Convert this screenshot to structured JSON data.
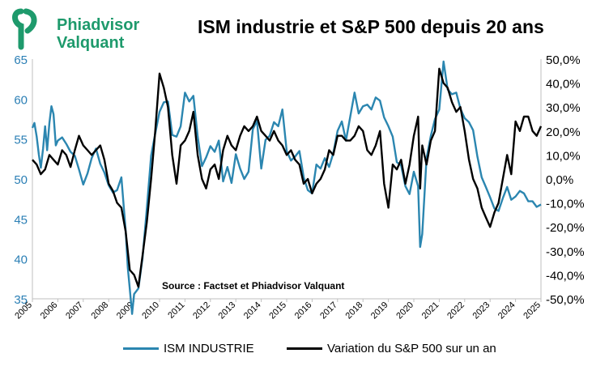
{
  "header": {
    "brand_line1": "Phiadvisor",
    "brand_line2": "Valquant",
    "title": "ISM industrie et S&P 500 depuis 20 ans"
  },
  "colors": {
    "ism": "#2b86b0",
    "sp": "#000000",
    "brand": "#1e9a6c",
    "left_axis_text": "#2b7fb5"
  },
  "chart_data": {
    "type": "line",
    "title": "ISM industrie et S&P 500 depuis 20 ans",
    "annotation": "Source : Factset et Phiadvisor Valquant",
    "x_ticks": [
      "2005",
      "2006",
      "2007",
      "2008",
      "2009",
      "2010",
      "2011",
      "2012",
      "2013",
      "2014",
      "2015",
      "2016",
      "2017",
      "2018",
      "2019",
      "2020",
      "2021",
      "2022",
      "2023",
      "2024",
      "2025"
    ],
    "xlim": [
      2005,
      2025
    ],
    "y_left": {
      "ylim": [
        35,
        65
      ],
      "ticks": [
        "35",
        "40",
        "45",
        "50",
        "55",
        "60",
        "65"
      ]
    },
    "y_right": {
      "ylim": [
        -50,
        50
      ],
      "ticks": [
        "-50,0%",
        "-40,0%",
        "-30,0%",
        "-20,0%",
        "-10,0%",
        "0,0%",
        "10,0%",
        "20,0%",
        "30,0%",
        "40,0%",
        "50,0%"
      ]
    },
    "grid": false,
    "legend_position": "bottom",
    "series": [
      {
        "name": "ISM INDUSTRIE",
        "axis": "left",
        "x": [
          2005.0,
          2005.08,
          2005.17,
          2005.25,
          2005.33,
          2005.42,
          2005.5,
          2005.58,
          2005.67,
          2005.75,
          2005.83,
          2005.92,
          2006.0,
          2006.17,
          2006.33,
          2006.5,
          2006.67,
          2006.83,
          2007.0,
          2007.17,
          2007.33,
          2007.5,
          2007.67,
          2007.83,
          2008.0,
          2008.17,
          2008.33,
          2008.5,
          2008.67,
          2008.75,
          2008.83,
          2008.92,
          2009.0,
          2009.17,
          2009.33,
          2009.5,
          2009.67,
          2009.83,
          2010.0,
          2010.17,
          2010.33,
          2010.5,
          2010.67,
          2010.83,
          2011.0,
          2011.17,
          2011.33,
          2011.5,
          2011.67,
          2011.83,
          2012.0,
          2012.17,
          2012.33,
          2012.5,
          2012.67,
          2012.83,
          2013.0,
          2013.17,
          2013.33,
          2013.5,
          2013.67,
          2013.83,
          2014.0,
          2014.17,
          2014.33,
          2014.5,
          2014.67,
          2014.83,
          2015.0,
          2015.17,
          2015.33,
          2015.5,
          2015.67,
          2015.83,
          2016.0,
          2016.17,
          2016.33,
          2016.5,
          2016.67,
          2016.83,
          2017.0,
          2017.17,
          2017.33,
          2017.5,
          2017.67,
          2017.83,
          2018.0,
          2018.17,
          2018.33,
          2018.5,
          2018.67,
          2018.83,
          2019.0,
          2019.17,
          2019.33,
          2019.5,
          2019.67,
          2019.83,
          2020.0,
          2020.17,
          2020.25,
          2020.33,
          2020.5,
          2020.67,
          2020.83,
          2021.0,
          2021.17,
          2021.33,
          2021.5,
          2021.67,
          2021.83,
          2022.0,
          2022.17,
          2022.33,
          2022.5,
          2022.67,
          2022.83,
          2023.0,
          2023.17,
          2023.33,
          2023.5,
          2023.67,
          2023.83,
          2024.0,
          2024.17,
          2024.33,
          2024.5,
          2024.67,
          2024.83,
          2025.0
        ],
        "values": [
          56.4,
          57.0,
          55.3,
          53.1,
          51.4,
          53.8,
          56.6,
          53.6,
          57.0,
          59.1,
          58.1,
          54.2,
          54.8,
          55.2,
          54.4,
          53.4,
          52.9,
          51.2,
          49.3,
          50.7,
          52.6,
          53.8,
          51.9,
          50.8,
          49.2,
          48.3,
          48.6,
          50.2,
          43.5,
          38.9,
          36.2,
          33.1,
          35.6,
          36.3,
          40.1,
          46.3,
          52.9,
          55.7,
          58.4,
          59.6,
          59.7,
          55.5,
          55.3,
          56.6,
          60.8,
          59.7,
          60.4,
          55.3,
          51.6,
          52.7,
          54.1,
          53.4,
          54.8,
          49.7,
          51.5,
          49.5,
          53.1,
          51.3,
          50.0,
          50.9,
          56.2,
          57.3,
          51.3,
          54.9,
          55.4,
          57.1,
          56.6,
          58.7,
          53.5,
          52.3,
          52.8,
          53.5,
          50.2,
          48.6,
          48.2,
          51.8,
          51.3,
          52.6,
          51.5,
          53.2,
          56.0,
          57.2,
          54.8,
          57.8,
          60.8,
          58.2,
          59.1,
          59.3,
          58.7,
          60.2,
          59.8,
          57.7,
          56.6,
          55.3,
          52.1,
          51.7,
          49.1,
          48.1,
          50.9,
          49.1,
          41.5,
          43.1,
          52.6,
          55.4,
          57.5,
          58.7,
          64.7,
          61.2,
          60.6,
          60.8,
          58.8,
          57.6,
          57.1,
          56.1,
          52.8,
          50.2,
          49.0,
          47.7,
          46.3,
          46.0,
          47.6,
          49.0,
          47.4,
          47.8,
          48.5,
          48.2,
          47.2,
          47.2,
          46.5,
          46.8
        ]
      },
      {
        "name": "Variation du S&P 500 sur un an",
        "axis": "right",
        "x": [
          2005.0,
          2005.17,
          2005.33,
          2005.5,
          2005.67,
          2005.83,
          2006.0,
          2006.17,
          2006.33,
          2006.5,
          2006.67,
          2006.83,
          2007.0,
          2007.17,
          2007.33,
          2007.5,
          2007.67,
          2007.83,
          2008.0,
          2008.17,
          2008.33,
          2008.5,
          2008.67,
          2008.83,
          2009.0,
          2009.17,
          2009.33,
          2009.5,
          2009.67,
          2009.83,
          2010.0,
          2010.17,
          2010.33,
          2010.5,
          2010.67,
          2010.83,
          2011.0,
          2011.17,
          2011.33,
          2011.5,
          2011.67,
          2011.83,
          2012.0,
          2012.17,
          2012.33,
          2012.5,
          2012.67,
          2012.83,
          2013.0,
          2013.17,
          2013.33,
          2013.5,
          2013.67,
          2013.83,
          2014.0,
          2014.17,
          2014.33,
          2014.5,
          2014.67,
          2014.83,
          2015.0,
          2015.17,
          2015.33,
          2015.5,
          2015.67,
          2015.83,
          2016.0,
          2016.17,
          2016.33,
          2016.5,
          2016.67,
          2016.83,
          2017.0,
          2017.17,
          2017.33,
          2017.5,
          2017.67,
          2017.83,
          2018.0,
          2018.17,
          2018.33,
          2018.5,
          2018.67,
          2018.83,
          2019.0,
          2019.17,
          2019.33,
          2019.5,
          2019.67,
          2019.83,
          2020.0,
          2020.17,
          2020.25,
          2020.33,
          2020.5,
          2020.67,
          2020.83,
          2021.0,
          2021.17,
          2021.33,
          2021.5,
          2021.67,
          2021.83,
          2022.0,
          2022.17,
          2022.33,
          2022.5,
          2022.67,
          2022.83,
          2023.0,
          2023.17,
          2023.33,
          2023.5,
          2023.67,
          2023.83,
          2024.0,
          2024.17,
          2024.33,
          2024.5,
          2024.67,
          2024.83,
          2025.0
        ],
        "values": [
          8,
          6,
          2,
          4,
          10,
          8,
          6,
          12,
          10,
          5,
          12,
          18,
          14,
          12,
          10,
          12,
          14,
          8,
          -2,
          -5,
          -10,
          -12,
          -22,
          -38,
          -40,
          -45,
          -32,
          -18,
          0,
          20,
          44,
          38,
          30,
          10,
          -2,
          14,
          16,
          20,
          28,
          10,
          0,
          -4,
          4,
          6,
          0,
          12,
          18,
          14,
          12,
          18,
          22,
          20,
          22,
          26,
          20,
          18,
          16,
          20,
          16,
          14,
          10,
          12,
          8,
          6,
          -2,
          0,
          -6,
          -2,
          0,
          4,
          12,
          10,
          18,
          18,
          16,
          16,
          18,
          22,
          20,
          12,
          10,
          14,
          20,
          -2,
          -12,
          6,
          4,
          8,
          -2,
          6,
          18,
          26,
          -4,
          14,
          6,
          16,
          20,
          46,
          40,
          38,
          32,
          28,
          30,
          20,
          8,
          0,
          -4,
          -12,
          -16,
          -20,
          -14,
          -10,
          0,
          10,
          2,
          24,
          20,
          26,
          26,
          20,
          18,
          22
        ]
      }
    ]
  },
  "legend": {
    "ism_label": "ISM INDUSTRIE",
    "sp_label": "Variation du S&P 500 sur un an"
  }
}
